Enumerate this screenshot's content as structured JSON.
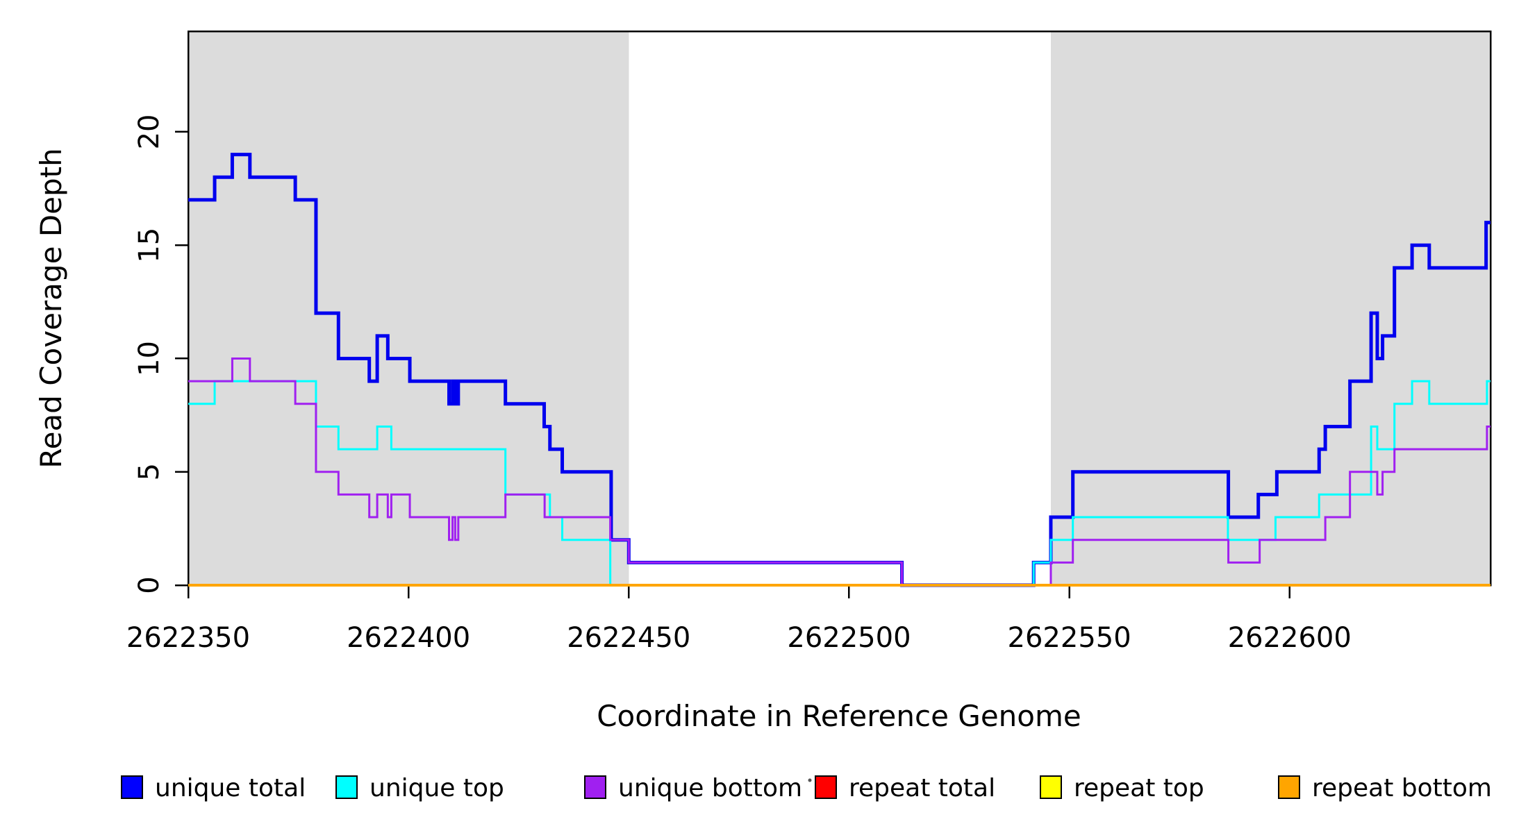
{
  "figure": {
    "background": "#FFFFFF"
  },
  "chart_data": {
    "type": "line",
    "subtype": "step",
    "title": "",
    "xlabel": "Coordinate in Reference Genome",
    "ylabel": "Read Coverage Depth",
    "xlim": [
      2622350,
      2622645.6
    ],
    "ylim": [
      0,
      24.44
    ],
    "grid": false,
    "x_ticks": [
      2622350,
      2622400,
      2622450,
      2622500,
      2622550,
      2622600
    ],
    "y_ticks": [
      0,
      5,
      10,
      15,
      20
    ],
    "panel_background": "#FFFFFF",
    "shaded_regions": [
      {
        "x0": 2622350,
        "x1": 2622450,
        "color": "#DCDCDC"
      },
      {
        "x0": 2622545.8,
        "x1": 2622645.6,
        "color": "#DCDCDC"
      }
    ],
    "series": [
      {
        "name": "unique total",
        "color": "#0000EE",
        "width": 5,
        "points": [
          [
            2622350,
            17
          ],
          [
            2622356,
            18
          ],
          [
            2622360,
            19
          ],
          [
            2622364,
            18
          ],
          [
            2622374.3,
            17
          ],
          [
            2622379,
            12
          ],
          [
            2622384.1,
            10
          ],
          [
            2622391.1,
            9
          ],
          [
            2622392.9,
            11
          ],
          [
            2622395.3,
            10
          ],
          [
            2622400.3,
            9
          ],
          [
            2622409.2,
            8
          ],
          [
            2622410,
            9
          ],
          [
            2622410.6,
            8
          ],
          [
            2622411.3,
            9
          ],
          [
            2622422,
            8
          ],
          [
            2622430.8,
            7
          ],
          [
            2622432.1,
            6
          ],
          [
            2622434.9,
            5
          ],
          [
            2622446,
            2
          ],
          [
            2622450,
            1
          ],
          [
            2622512,
            0
          ],
          [
            2622541.9,
            1
          ],
          [
            2622545.8,
            3
          ],
          [
            2622550.8,
            5
          ],
          [
            2622586.1,
            3
          ],
          [
            2622592.9,
            4
          ],
          [
            2622597.1,
            5
          ],
          [
            2622606.7,
            6
          ],
          [
            2622608.1,
            7
          ],
          [
            2622613.7,
            9
          ],
          [
            2622618.5,
            12
          ],
          [
            2622619.9,
            10
          ],
          [
            2622621.1,
            11
          ],
          [
            2622623.8,
            14
          ],
          [
            2622627.8,
            15
          ],
          [
            2622631.7,
            14
          ],
          [
            2622644.6,
            16
          ]
        ]
      },
      {
        "name": "unique top",
        "color": "#00FFFF",
        "width": 3,
        "points": [
          [
            2622350,
            8
          ],
          [
            2622356,
            9
          ],
          [
            2622379,
            7
          ],
          [
            2622384.1,
            6
          ],
          [
            2622392.9,
            7
          ],
          [
            2622396.1,
            6
          ],
          [
            2622422,
            4
          ],
          [
            2622432.1,
            3
          ],
          [
            2622434.9,
            2
          ],
          [
            2622445.8,
            0
          ],
          [
            2622541.9,
            1
          ],
          [
            2622545.8,
            2
          ],
          [
            2622550.8,
            3
          ],
          [
            2622586,
            2
          ],
          [
            2622596.8,
            3
          ],
          [
            2622606.7,
            4
          ],
          [
            2622618.5,
            7
          ],
          [
            2622619.9,
            6
          ],
          [
            2622623.8,
            8
          ],
          [
            2622627.8,
            9
          ],
          [
            2622631.7,
            8
          ],
          [
            2622644.8,
            9
          ]
        ]
      },
      {
        "name": "unique bottom",
        "color": "#A020F0",
        "width": 3,
        "points": [
          [
            2622350,
            9
          ],
          [
            2622360,
            10
          ],
          [
            2622364,
            9
          ],
          [
            2622374.3,
            8
          ],
          [
            2622379,
            5
          ],
          [
            2622384.1,
            4
          ],
          [
            2622391.1,
            3
          ],
          [
            2622392.9,
            4
          ],
          [
            2622395.3,
            3
          ],
          [
            2622396.1,
            4
          ],
          [
            2622400.3,
            3
          ],
          [
            2622409.2,
            2
          ],
          [
            2622410,
            3
          ],
          [
            2622410.6,
            2
          ],
          [
            2622411.3,
            3
          ],
          [
            2622422,
            4
          ],
          [
            2622430.9,
            3
          ],
          [
            2622445.8,
            2
          ],
          [
            2622450,
            1
          ],
          [
            2622512,
            0
          ],
          [
            2622545.8,
            1
          ],
          [
            2622550.8,
            2
          ],
          [
            2622586.1,
            1
          ],
          [
            2622593.2,
            2
          ],
          [
            2622608.1,
            3
          ],
          [
            2622613.7,
            5
          ],
          [
            2622619.9,
            4
          ],
          [
            2622621.1,
            5
          ],
          [
            2622623.8,
            6
          ],
          [
            2622644.8,
            7
          ]
        ]
      },
      {
        "name": "repeat total",
        "color": "#FF0000",
        "width": 3,
        "points": [
          [
            2622350,
            0
          ]
        ]
      },
      {
        "name": "repeat top",
        "color": "#FFFF00",
        "width": 3,
        "points": [
          [
            2622350,
            0
          ]
        ]
      },
      {
        "name": "repeat bottom",
        "color": "#FFA500",
        "width": 4,
        "points": [
          [
            2622350,
            0
          ]
        ]
      }
    ],
    "legend": {
      "position": "bottom",
      "entries": [
        {
          "label": "unique total",
          "color": "#0000FF"
        },
        {
          "label": "unique top",
          "color": "#00FFFF"
        },
        {
          "label": "unique bottom",
          "color": "#A020F0"
        },
        {
          "label": "repeat total",
          "color": "#FF0000"
        },
        {
          "label": "repeat top",
          "color": "#FFFF00"
        },
        {
          "label": "repeat bottom",
          "color": "#FFA500"
        }
      ],
      "artifact_dot": "·"
    }
  }
}
